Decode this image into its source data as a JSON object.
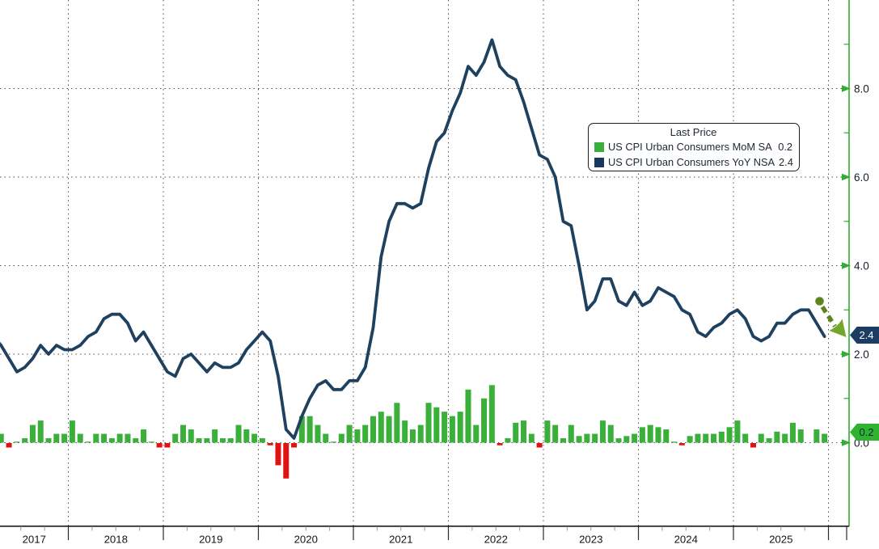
{
  "figure": {
    "background": "#ffffff",
    "description_colors": {
      "bar_positive": "#3ab03a",
      "bar_negative": "#e01313",
      "line": "#1e4160",
      "axis_green": "#2fae2f",
      "gridline": "#4f4f4f",
      "text": "#141d27"
    }
  },
  "legend": {
    "title": "Last Price",
    "items": [
      {
        "label": "US CPI Urban Consumers MoM SA",
        "value": "0.2",
        "swatch": "#3ab03a"
      },
      {
        "label": "US CPI Urban Consumers YoY NSA",
        "value": "2.4",
        "swatch": "#17375e"
      }
    ]
  },
  "axes": {
    "y_ticks": [
      "8.0",
      "6.0",
      "4.0",
      "2.0",
      "0.0"
    ],
    "y_tick_values": [
      8,
      6,
      4,
      2,
      0
    ],
    "y_minor_values": [
      9,
      7,
      5,
      3,
      1
    ],
    "x_years": [
      "2017",
      "2018",
      "2019",
      "2020",
      "2021",
      "2022",
      "2023",
      "2024",
      "2025"
    ]
  },
  "badges": {
    "yoy": {
      "text": "2.4",
      "bg": "#1b3c63",
      "fg": "#ffffff"
    },
    "mom": {
      "text": "0.2",
      "bg": "#2fb42f",
      "fg": "#0e2740"
    }
  },
  "annotation": {
    "shape": "dashed-arrow-down-right",
    "meaning": "inflation turning lower at end of series",
    "color_shaft": "#5f831d",
    "color_head": "#74a62c"
  },
  "chart_data": {
    "type": "combo",
    "x_unit": "month",
    "x_start": "2017-03",
    "x_end": "2025-12",
    "grid": true,
    "legend_position": "upper-right-center",
    "ylim": [
      -1.9,
      10.0
    ],
    "y_axis_side": "right",
    "note": "October 2025 MoM bar missing (null gap); values read from chart",
    "series": [
      {
        "name": "US CPI Urban Consumers MoM SA",
        "type": "bar",
        "last": 0.2,
        "values": [
          -0.3,
          0.2,
          -0.1,
          0.0,
          0.1,
          0.4,
          0.5,
          0.1,
          0.2,
          0.2,
          0.5,
          0.2,
          0.0,
          0.2,
          0.2,
          0.1,
          0.2,
          0.2,
          0.1,
          0.3,
          0.0,
          -0.1,
          -0.1,
          0.2,
          0.4,
          0.3,
          0.1,
          0.1,
          0.3,
          0.1,
          0.1,
          0.4,
          0.3,
          0.2,
          0.1,
          -0.05,
          -0.5,
          -0.8,
          -0.1,
          0.6,
          0.6,
          0.4,
          0.2,
          0.0,
          0.2,
          0.4,
          0.3,
          0.4,
          0.6,
          0.7,
          0.6,
          0.9,
          0.5,
          0.3,
          0.4,
          0.9,
          0.8,
          0.7,
          0.6,
          0.7,
          1.2,
          0.4,
          1.0,
          1.3,
          -0.05,
          0.1,
          0.45,
          0.5,
          0.2,
          -0.1,
          0.5,
          0.4,
          0.1,
          0.4,
          0.15,
          0.2,
          0.2,
          0.5,
          0.4,
          0.1,
          0.15,
          0.2,
          0.35,
          0.4,
          0.35,
          0.3,
          0.0,
          -0.05,
          0.15,
          0.2,
          0.2,
          0.2,
          0.25,
          0.35,
          0.5,
          0.2,
          -0.1,
          0.2,
          0.1,
          0.25,
          0.2,
          0.45,
          0.3,
          null,
          0.3,
          0.2
        ]
      },
      {
        "name": "US CPI Urban Consumers YoY NSA",
        "type": "line",
        "last": 2.4,
        "values": [
          2.4,
          2.2,
          1.9,
          1.6,
          1.7,
          1.9,
          2.2,
          2.0,
          2.2,
          2.1,
          2.1,
          2.2,
          2.4,
          2.5,
          2.8,
          2.9,
          2.9,
          2.7,
          2.3,
          2.5,
          2.2,
          1.9,
          1.6,
          1.5,
          1.9,
          2.0,
          1.8,
          1.6,
          1.8,
          1.7,
          1.7,
          1.8,
          2.1,
          2.3,
          2.5,
          2.3,
          1.5,
          0.3,
          0.1,
          0.6,
          1.0,
          1.3,
          1.4,
          1.2,
          1.2,
          1.4,
          1.4,
          1.7,
          2.6,
          4.2,
          5.0,
          5.4,
          5.4,
          5.3,
          5.4,
          6.2,
          6.8,
          7.0,
          7.5,
          7.9,
          8.5,
          8.3,
          8.6,
          9.1,
          8.5,
          8.3,
          8.2,
          7.7,
          7.1,
          6.5,
          6.4,
          6.0,
          5.0,
          4.9,
          4.0,
          3.0,
          3.2,
          3.7,
          3.7,
          3.2,
          3.1,
          3.4,
          3.1,
          3.2,
          3.5,
          3.4,
          3.3,
          3.0,
          2.9,
          2.5,
          2.4,
          2.6,
          2.7,
          2.9,
          3.0,
          2.8,
          2.4,
          2.3,
          2.4,
          2.7,
          2.7,
          2.9,
          3.0,
          3.0,
          2.7,
          2.4
        ]
      }
    ]
  }
}
